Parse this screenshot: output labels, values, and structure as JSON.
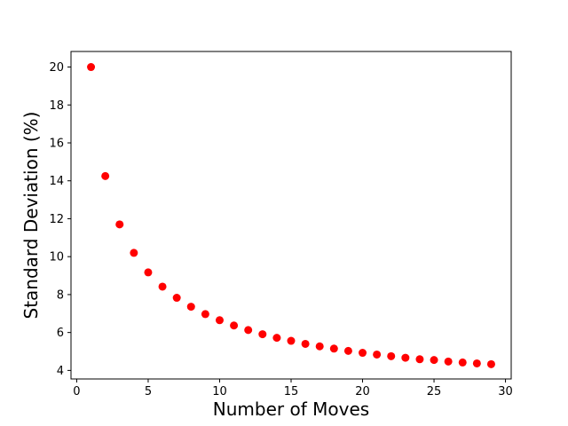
{
  "chart_data": {
    "type": "scatter",
    "title": "",
    "xlabel": "Number of Moves",
    "ylabel": "Standard Deviation (%)",
    "xlim": [
      -0.4,
      30.4
    ],
    "ylim": [
      3.55,
      20.82
    ],
    "xticks": [
      0,
      5,
      10,
      15,
      20,
      25,
      30
    ],
    "yticks": [
      4,
      6,
      8,
      10,
      12,
      14,
      16,
      18,
      20
    ],
    "grid": false,
    "marker_color": "#ff0000",
    "series": [
      {
        "x": [
          1,
          2,
          3,
          4,
          5,
          6,
          7,
          8,
          9,
          10,
          11,
          12,
          13,
          14,
          15,
          16,
          17,
          18,
          19,
          20,
          21,
          22,
          23,
          24,
          25,
          26,
          27,
          28,
          29
        ],
        "y": [
          20.0,
          14.25,
          11.7,
          10.2,
          9.17,
          8.42,
          7.83,
          7.36,
          6.97,
          6.65,
          6.37,
          6.13,
          5.91,
          5.72,
          5.56,
          5.4,
          5.27,
          5.15,
          5.03,
          4.93,
          4.84,
          4.75,
          4.67,
          4.59,
          4.55,
          4.47,
          4.42,
          4.37,
          4.33
        ]
      }
    ]
  }
}
